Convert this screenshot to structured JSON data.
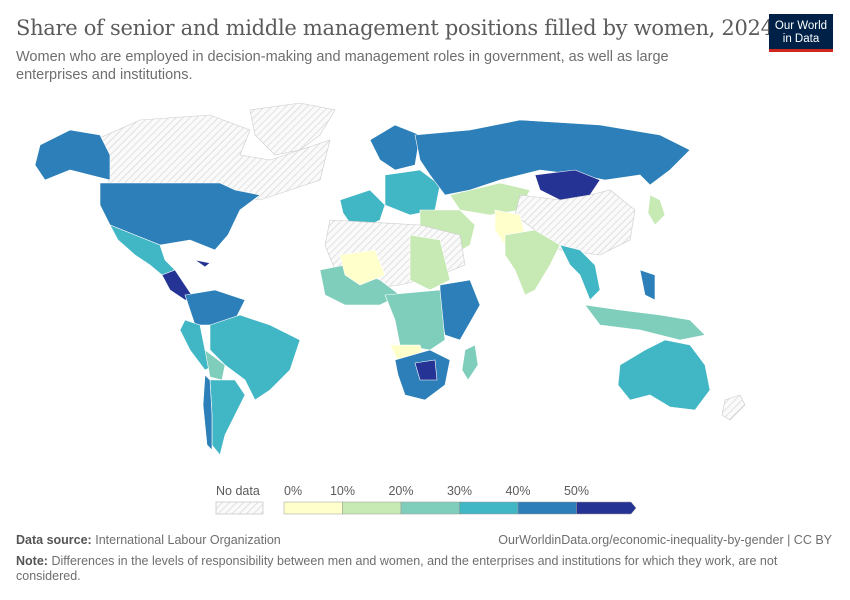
{
  "header": {
    "title": "Share of senior and middle management positions filled by women, 2024",
    "subtitle": "Women who are employed in decision-making and management roles in government, as well as large enterprises and institutions.",
    "logo": "Our World in Data"
  },
  "legend": {
    "no_data_label": "No data",
    "ticks": [
      "0%",
      "10%",
      "20%",
      "30%",
      "40%",
      "50%"
    ],
    "bins": [
      {
        "range": "0-10%",
        "color": "#ffffcc"
      },
      {
        "range": "10-20%",
        "color": "#c7e9b4"
      },
      {
        "range": "20-30%",
        "color": "#7fcdbb"
      },
      {
        "range": "30-40%",
        "color": "#41b6c4"
      },
      {
        "range": "40-50%",
        "color": "#2c7fb8"
      },
      {
        "range": ">50%",
        "color": "#253494"
      }
    ],
    "no_data_color": "#e8e8e8"
  },
  "footer": {
    "source_label": "Data source:",
    "source": "International Labour Organization",
    "url": "OurWorldinData.org/economic-inequality-by-gender | CC BY",
    "note_label": "Note:",
    "note": "Differences in the levels of responsibility between men and women, and the enterprises and institutions for which they work, are not considered."
  }
}
